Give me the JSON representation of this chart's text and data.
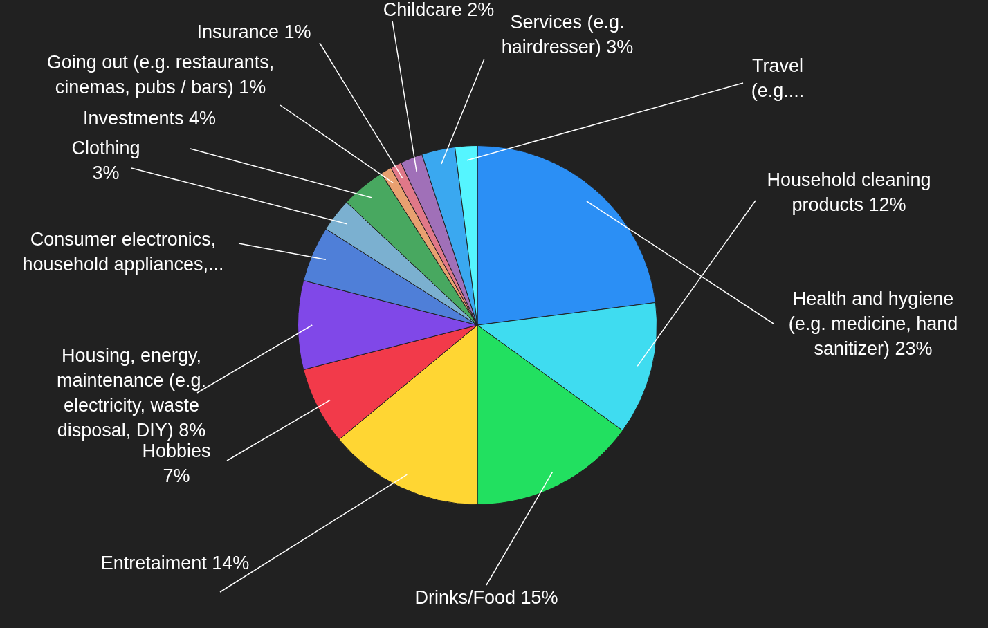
{
  "chart_data": {
    "type": "pie",
    "categories": [
      "Health and hygiene (e.g. medicine, hand sanitizer)",
      "Household cleaning products",
      "Drinks/Food",
      "Entretaiment",
      "Hobbies",
      "Housing, energy, maintenance (e.g. electricity, waste disposal, DIY)",
      "Consumer electronics, household appliances,...",
      "Clothing",
      "Investments",
      "Going out (e.g. restaurants, cinemas, pubs / bars)",
      "Insurance",
      "Childcare",
      "Services (e.g. hairdresser)",
      "Travel (e.g...."
    ],
    "values": [
      23,
      12,
      15,
      14,
      7,
      8,
      5,
      3,
      4,
      1,
      1,
      2,
      3,
      2
    ],
    "value_labels": [
      "23%",
      "12%",
      "15%",
      "14%",
      "7%",
      "8%",
      null,
      "3%",
      "4%",
      "1%",
      "1%",
      "2%",
      "3%",
      null
    ],
    "colors": [
      "#2b8ff5",
      "#3fdcf0",
      "#22e060",
      "#ffd633",
      "#f23a4a",
      "#8048e8",
      "#4f7fd8",
      "#7bb0d0",
      "#48a860",
      "#e8a070",
      "#e07888",
      "#a070b8",
      "#3aa8f0",
      "#55f5ff"
    ],
    "legend": false
  }
}
